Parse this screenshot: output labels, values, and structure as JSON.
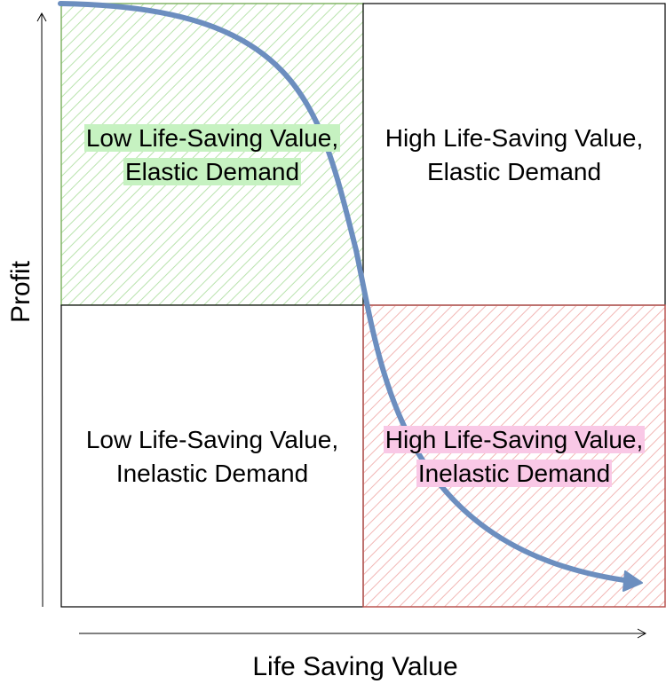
{
  "axes": {
    "x_label": "Life Saving Value",
    "y_label": "Profit"
  },
  "quadrants": {
    "top_left": {
      "line1": "Low Life-Saving Value,",
      "line2": "Elastic Demand",
      "fill": "#d8f0d0",
      "border": "#82b366",
      "highlight": "#c6f2c1"
    },
    "top_right": {
      "line1": "High Life-Saving Value,",
      "line2": "Elastic Demand"
    },
    "bottom_left": {
      "line1": "Low Life-Saving Value,",
      "line2": "Inelastic Demand"
    },
    "bottom_right": {
      "line1": "High Life-Saving Value,",
      "line2": "Inelastic Demand",
      "fill": "#f8cecc",
      "border": "#b85450",
      "highlight": "#f9c8e6"
    }
  },
  "curve": {
    "color": "#6c8ebf"
  }
}
